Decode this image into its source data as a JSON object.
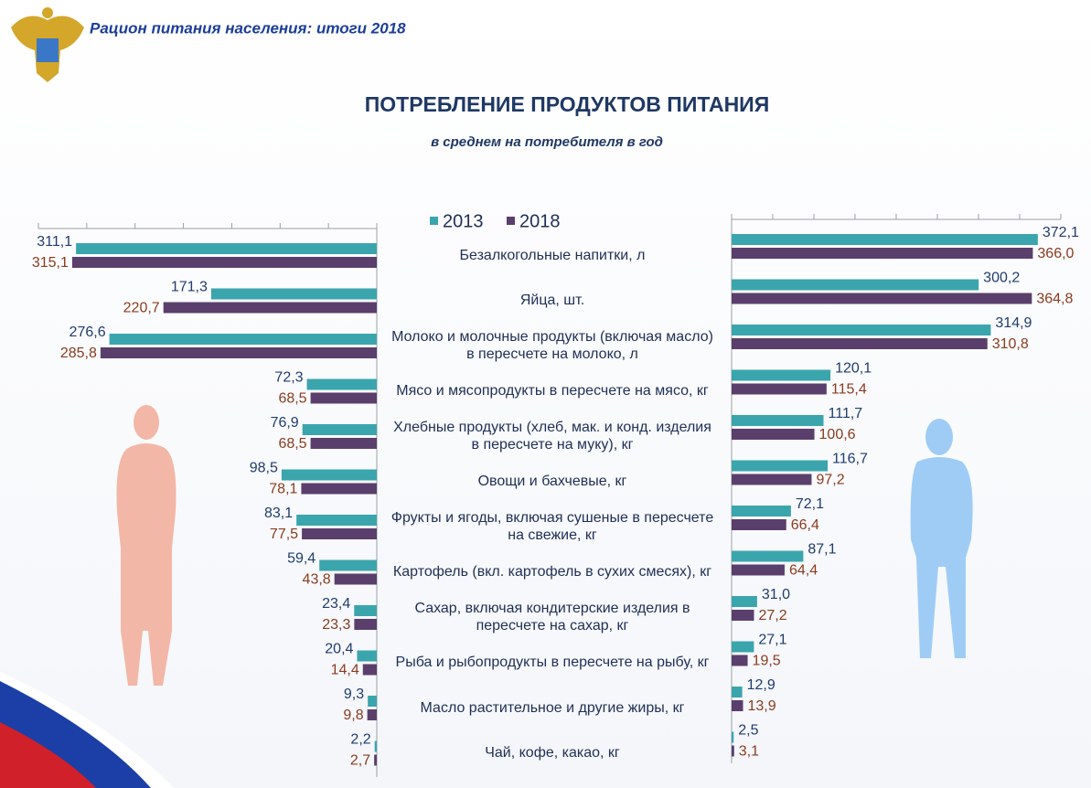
{
  "header": {
    "title": "Рацион питания населения: итоги 2018"
  },
  "chart_data": {
    "type": "butterfly-bar",
    "title": "ПОТРЕБЛЕНИЕ ПРОДУКТОВ ПИТАНИЯ",
    "subtitle": "в среднем на потребителя в год",
    "categories": [
      "Безалкогольные  напитки, л",
      "Яйца, шт.",
      "Молоко и молочные продукты (включая масло) в пересчете на молоко, л",
      "Мясо и мясопродукты в пересчете на мясо, кг",
      "Хлебные продукты (хлеб, мак. и конд. изделия в пересчете на муку), кг",
      "Овощи и бахчевые, кг",
      "Фрукты и ягоды, включая сушеные в пересчете на свежие, кг",
      "Картофель (вкл. картофель в сухих смесях), кг",
      "Сахар, включая кондитерские изделия в пересчете на сахар, кг",
      "Рыба и рыбопродукты в пересчете на рыбу, кг",
      "Масло растительное и другие жиры, кг",
      "Чай, кофе, какао, кг"
    ],
    "series": [
      {
        "name": "2013",
        "color": "#3ba5ad",
        "label_color": "#1f3c6e",
        "women": [
          311.1,
          171.3,
          276.6,
          72.3,
          76.9,
          98.5,
          83.1,
          59.4,
          23.4,
          20.4,
          9.3,
          2.2
        ],
        "women_labels": [
          "311,1",
          "171,3",
          "276,6",
          "72,3",
          "76,9",
          "98,5",
          "83,1",
          "59,4",
          "23,4",
          "20,4",
          "9,3",
          "2,2"
        ],
        "men": [
          372.1,
          300.2,
          314.9,
          120.1,
          111.7,
          116.7,
          72.1,
          87.1,
          31.0,
          27.1,
          12.9,
          2.5
        ],
        "men_labels": [
          "372,1",
          "300,2",
          "314,9",
          "120,1",
          "111,7",
          "116,7",
          "72,1",
          "87,1",
          "31,0",
          "27,1",
          "12,9",
          "2,5"
        ]
      },
      {
        "name": "2018",
        "color": "#5a3f6c",
        "label_color": "#8a3b1f",
        "women": [
          315.1,
          220.7,
          285.8,
          68.5,
          68.5,
          78.1,
          77.5,
          43.8,
          23.3,
          14.4,
          9.8,
          2.7
        ],
        "women_labels": [
          "315,1",
          "220,7",
          "285,8",
          "68,5",
          "68,5",
          "78,1",
          "77,5",
          "43,8",
          "23,3",
          "14,4",
          "9,8",
          "2,7"
        ],
        "men": [
          366.0,
          364.8,
          310.8,
          115.4,
          100.6,
          97.2,
          66.4,
          64.4,
          27.2,
          19.5,
          13.9,
          3.1
        ],
        "men_labels": [
          "366,0",
          "364,8",
          "310,8",
          "115,4",
          "100,6",
          "97,2",
          "66,4",
          "64,4",
          "27,2",
          "19,5",
          "13,9",
          "3,1"
        ]
      }
    ],
    "women_xlim": [
      0,
      350
    ],
    "women_xticks": [
      0,
      50,
      100,
      150,
      200,
      250,
      300,
      350
    ],
    "men_xlim": [
      0,
      400
    ],
    "men_xticks": [
      0,
      50,
      100,
      150,
      200,
      250,
      300,
      350,
      400
    ]
  }
}
